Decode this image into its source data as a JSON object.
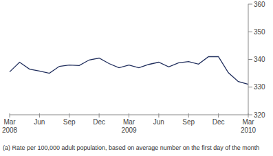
{
  "chart_data": {
    "type": "line",
    "categories": [
      "Mar 2008",
      null,
      null,
      "Jun",
      null,
      null,
      "Sep",
      null,
      null,
      "Dec",
      null,
      null,
      "Mar 2009",
      null,
      null,
      "Jun",
      null,
      null,
      "Sep",
      null,
      null,
      "Dec",
      null,
      null,
      "Mar 2010"
    ],
    "values": [
      335.5,
      339,
      336.5,
      335.8,
      335,
      337.5,
      338,
      337.8,
      339.8,
      340.5,
      338.5,
      337,
      338,
      337,
      338.2,
      339,
      337.3,
      338.8,
      339.2,
      338.3,
      341,
      341,
      335.2,
      332,
      331
    ],
    "color": "#1f2d5c",
    "ylim": [
      320,
      360
    ],
    "yticks": [
      320,
      330,
      340,
      350,
      360
    ],
    "grid": false,
    "footnote": "(a) Rate per 100,000 adult population, based on average number on the first day of the month"
  }
}
